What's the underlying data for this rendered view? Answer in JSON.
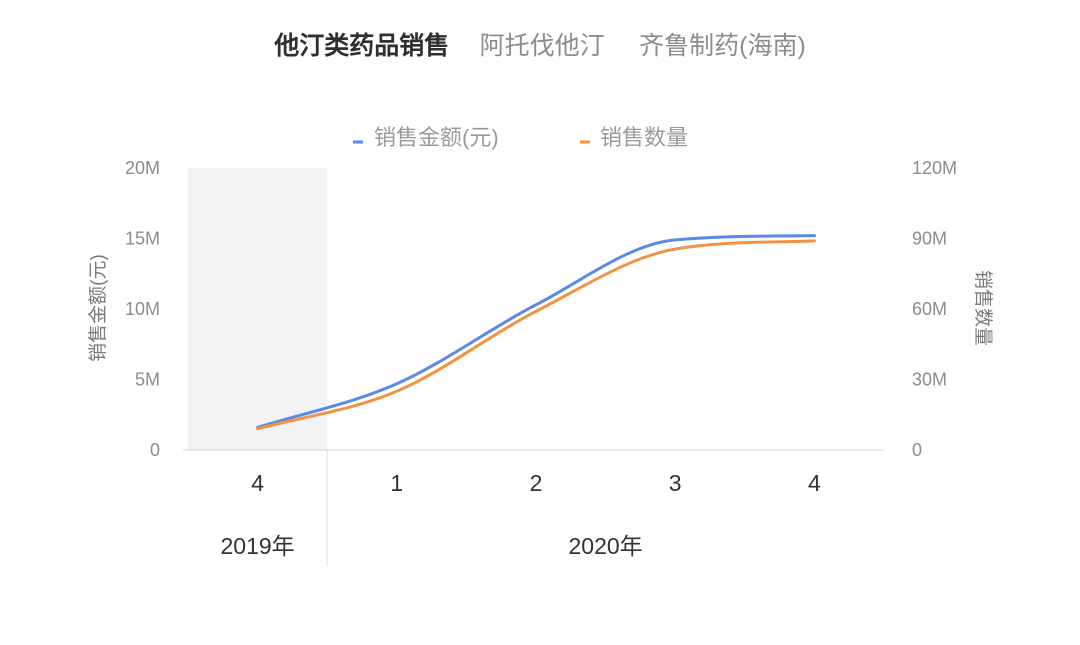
{
  "title": {
    "main": "他汀类药品销售",
    "drug": "阿托伐他汀",
    "maker": "齐鲁制药(海南)"
  },
  "colors": {
    "shade": "#f2f3f5",
    "axis": "#d4d4d4",
    "divider": "#e2e2e2"
  },
  "chart_data": {
    "type": "line",
    "categories": [
      "4",
      "1",
      "2",
      "3",
      "4"
    ],
    "groups": [
      {
        "label": "2019年",
        "span": 1,
        "shaded": true
      },
      {
        "label": "2020年",
        "span": 4,
        "shaded": false
      }
    ],
    "series": [
      {
        "name": "销售金额(元)",
        "axis": "left",
        "color": "#5b8ae6",
        "values": [
          1600000,
          4700000,
          10300000,
          14900000,
          15200000
        ]
      },
      {
        "name": "销售数量",
        "axis": "right",
        "color": "#f39145",
        "values": [
          9000000,
          25000000,
          59000000,
          85500000,
          89000000
        ]
      }
    ],
    "y_left": {
      "label": "销售金额(元)",
      "range": [
        0,
        20000000
      ],
      "ticks": [
        0,
        5000000,
        10000000,
        15000000,
        20000000
      ],
      "tick_labels": [
        "0",
        "5M",
        "10M",
        "15M",
        "20M"
      ]
    },
    "y_right": {
      "label": "销售数量",
      "range": [
        0,
        120000000
      ],
      "ticks": [
        0,
        30000000,
        60000000,
        90000000,
        120000000
      ],
      "tick_labels": [
        "0",
        "30M",
        "60M",
        "90M",
        "120M"
      ]
    },
    "legend": "top",
    "grid": false
  }
}
